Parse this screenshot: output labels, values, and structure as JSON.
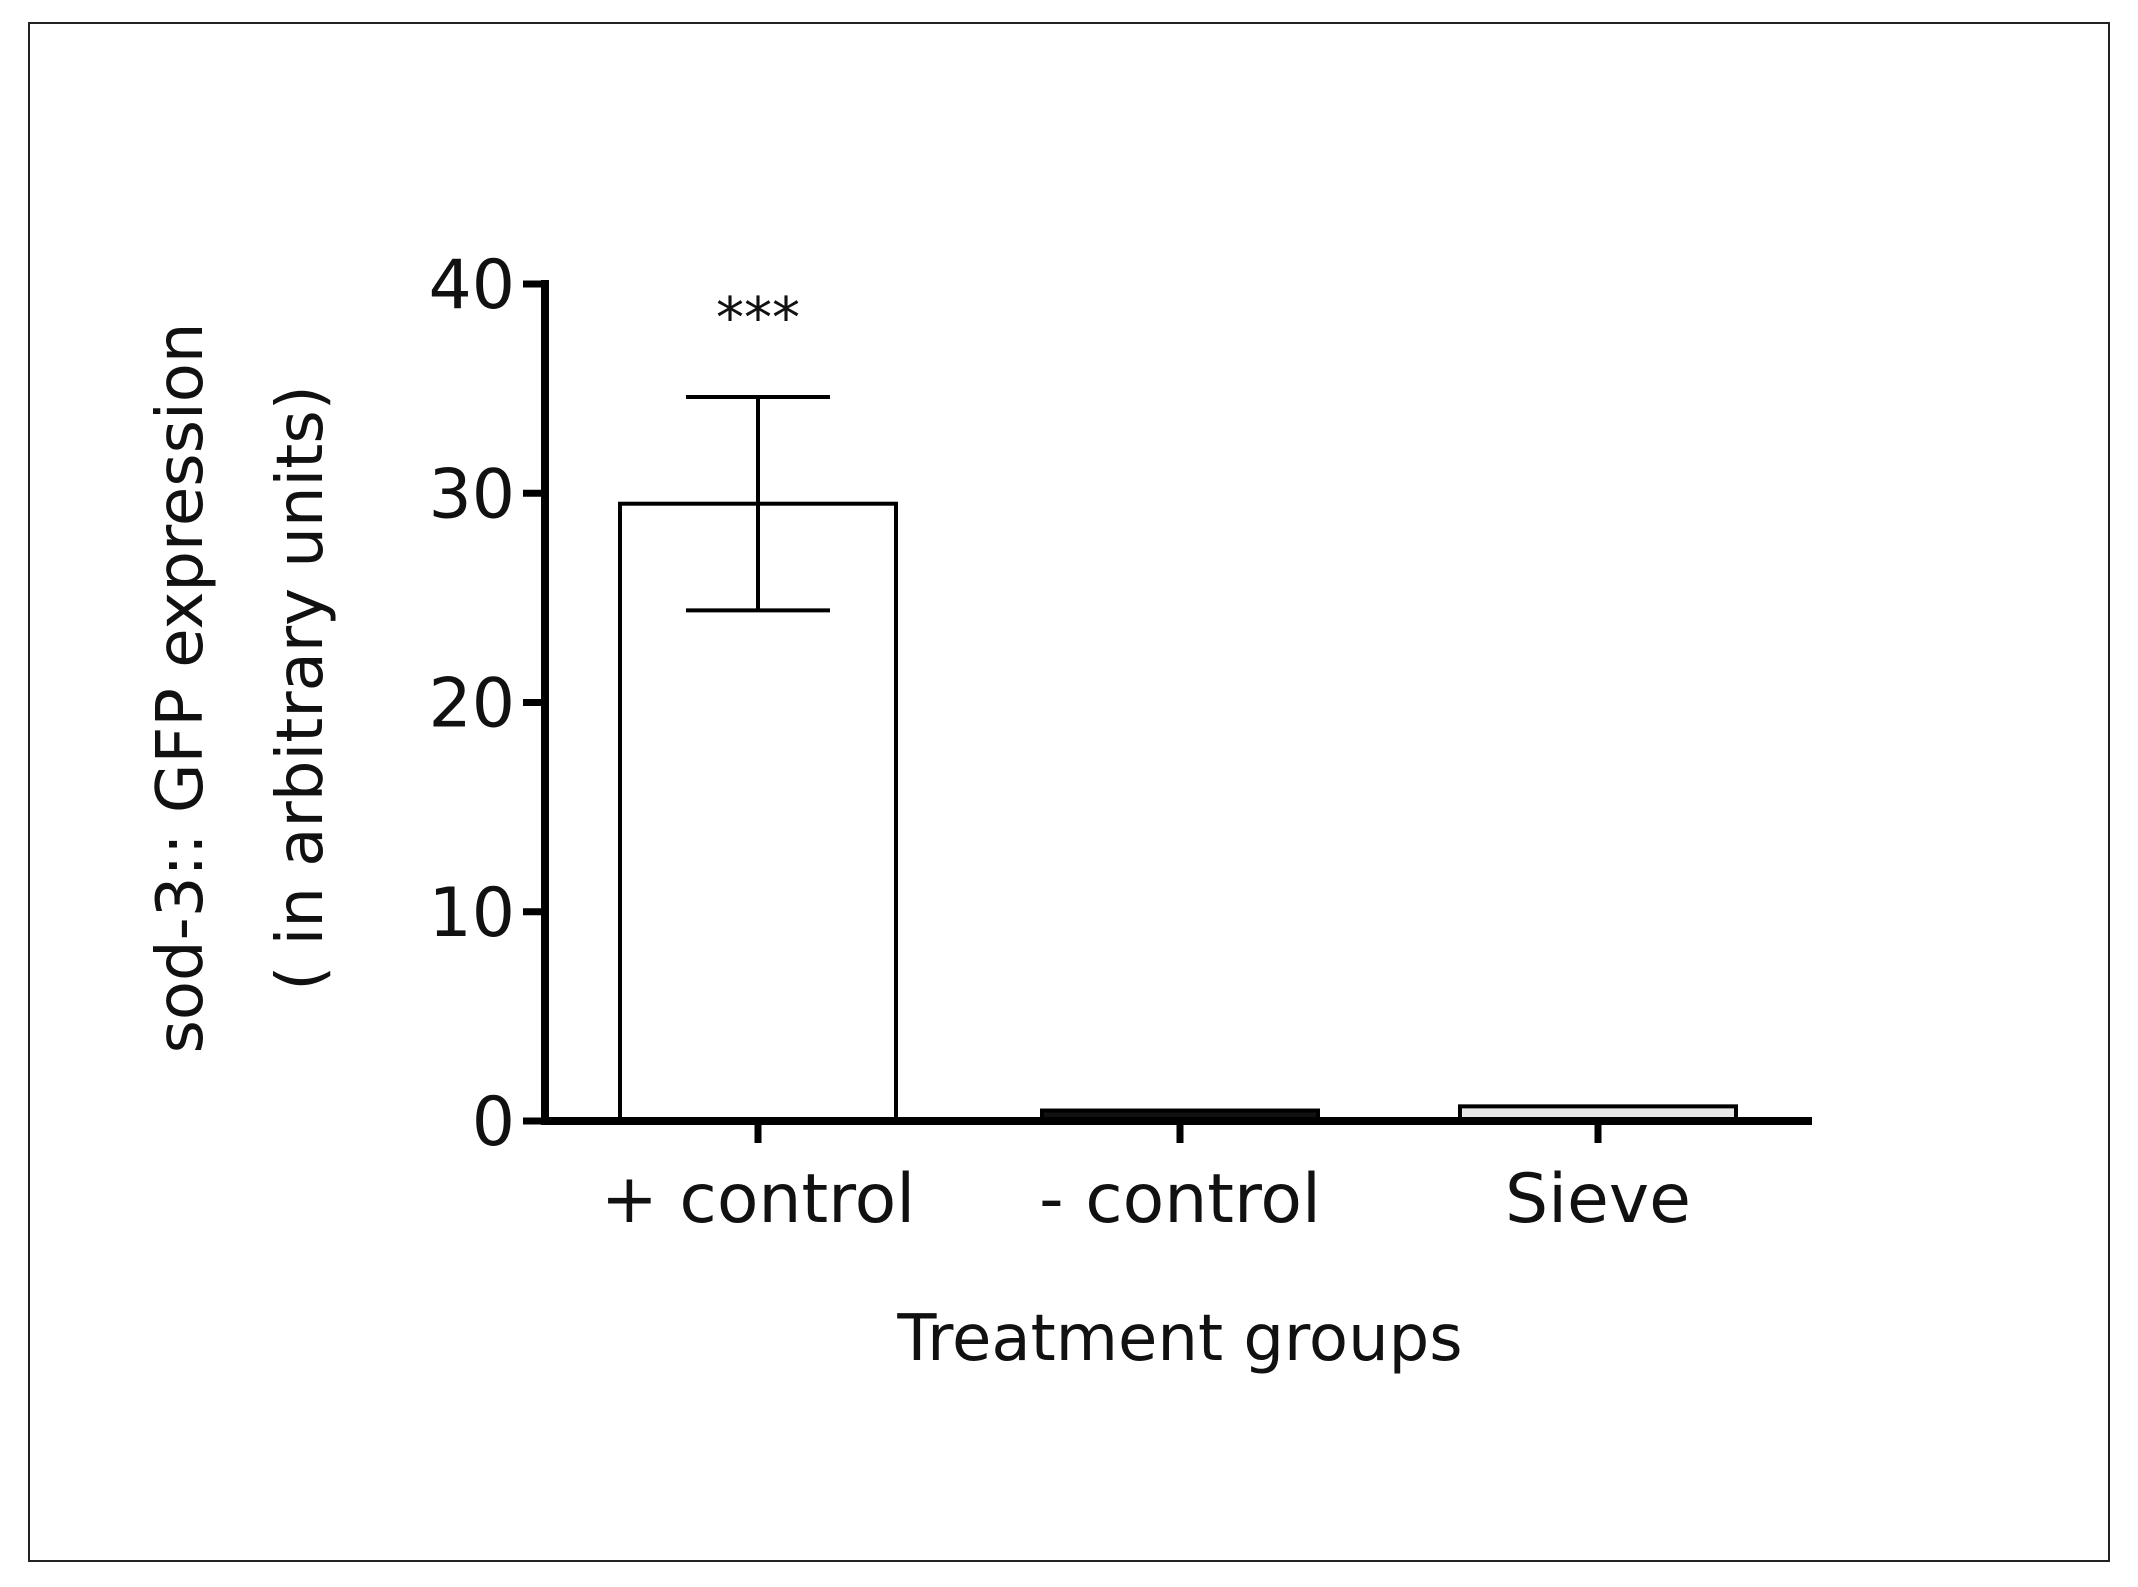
{
  "chart_data": {
    "type": "bar",
    "title": "",
    "categories": [
      "+ control",
      "- control",
      "Sieve"
    ],
    "values": [
      29.5,
      0.5,
      0.7
    ],
    "errors": [
      5.1,
      0,
      0
    ],
    "annotations": [
      "***",
      "",
      ""
    ],
    "xlabel": "Treatment groups",
    "ylabel_line1": "sod-3:: GFP expression",
    "ylabel_line2": "( in arbitrary units)",
    "ylim": [
      0,
      40
    ],
    "yticks": [
      0,
      10,
      20,
      30,
      40
    ],
    "ytick_labels": [
      "0",
      "10",
      "20",
      "30",
      "40"
    ],
    "grid": false,
    "colors": {
      "bar_positive": "#ffffff",
      "bar_negative": "#111111",
      "bar_sieve": "#e6e6e6",
      "axis": "#000000"
    }
  }
}
